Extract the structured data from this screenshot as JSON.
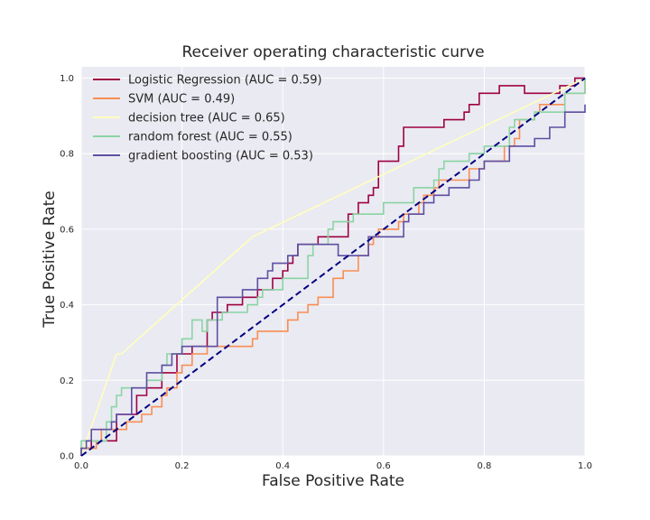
{
  "chart_data": {
    "type": "line",
    "title": "Receiver operating characteristic curve",
    "xlabel": "False Positive Rate",
    "ylabel": "True Positive Rate",
    "xlim": [
      0,
      1
    ],
    "ylim": [
      0,
      1.03
    ],
    "x_ticks": [
      "0.0",
      "0.2",
      "0.4",
      "0.6",
      "0.8",
      "1.0"
    ],
    "y_ticks": [
      "0.0",
      "0.2",
      "0.4",
      "0.6",
      "0.8",
      "1.0"
    ],
    "grid": true,
    "legend_position": "top-left",
    "background_color": "#eaeaf2",
    "grid_color": "#ffffff",
    "series": [
      {
        "name": "Logistic Regression (AUC = 0.59)",
        "color": "#9e0142",
        "step": true,
        "points": [
          [
            0,
            0
          ],
          [
            0,
            0.02
          ],
          [
            0.02,
            0.02
          ],
          [
            0.02,
            0.04
          ],
          [
            0.07,
            0.04
          ],
          [
            0.07,
            0.11
          ],
          [
            0.11,
            0.11
          ],
          [
            0.11,
            0.16
          ],
          [
            0.13,
            0.16
          ],
          [
            0.13,
            0.18
          ],
          [
            0.16,
            0.18
          ],
          [
            0.16,
            0.22
          ],
          [
            0.19,
            0.22
          ],
          [
            0.19,
            0.27
          ],
          [
            0.22,
            0.27
          ],
          [
            0.22,
            0.29
          ],
          [
            0.25,
            0.29
          ],
          [
            0.25,
            0.36
          ],
          [
            0.26,
            0.36
          ],
          [
            0.26,
            0.38
          ],
          [
            0.29,
            0.38
          ],
          [
            0.29,
            0.4
          ],
          [
            0.32,
            0.4
          ],
          [
            0.32,
            0.42
          ],
          [
            0.35,
            0.42
          ],
          [
            0.35,
            0.44
          ],
          [
            0.38,
            0.44
          ],
          [
            0.38,
            0.47
          ],
          [
            0.4,
            0.47
          ],
          [
            0.4,
            0.49
          ],
          [
            0.41,
            0.49
          ],
          [
            0.41,
            0.51
          ],
          [
            0.42,
            0.51
          ],
          [
            0.42,
            0.53
          ],
          [
            0.43,
            0.53
          ],
          [
            0.43,
            0.56
          ],
          [
            0.47,
            0.56
          ],
          [
            0.47,
            0.58
          ],
          [
            0.53,
            0.58
          ],
          [
            0.53,
            0.64
          ],
          [
            0.55,
            0.64
          ],
          [
            0.55,
            0.67
          ],
          [
            0.57,
            0.67
          ],
          [
            0.57,
            0.69
          ],
          [
            0.58,
            0.69
          ],
          [
            0.58,
            0.71
          ],
          [
            0.59,
            0.71
          ],
          [
            0.59,
            0.78
          ],
          [
            0.63,
            0.78
          ],
          [
            0.63,
            0.82
          ],
          [
            0.64,
            0.82
          ],
          [
            0.64,
            0.87
          ],
          [
            0.72,
            0.87
          ],
          [
            0.72,
            0.89
          ],
          [
            0.76,
            0.89
          ],
          [
            0.76,
            0.91
          ],
          [
            0.77,
            0.91
          ],
          [
            0.77,
            0.93
          ],
          [
            0.79,
            0.93
          ],
          [
            0.79,
            0.96
          ],
          [
            0.83,
            0.96
          ],
          [
            0.83,
            0.98
          ],
          [
            0.88,
            0.98
          ],
          [
            0.88,
            0.96
          ],
          [
            0.95,
            0.96
          ],
          [
            0.95,
            0.98
          ],
          [
            0.98,
            0.98
          ],
          [
            0.98,
            1.0
          ],
          [
            1.0,
            1.0
          ]
        ]
      },
      {
        "name": "SVM (AUC = 0.49)",
        "color": "#f98e52",
        "step": true,
        "points": [
          [
            0,
            0
          ],
          [
            0,
            0.02
          ],
          [
            0.03,
            0.02
          ],
          [
            0.03,
            0.04
          ],
          [
            0.04,
            0.04
          ],
          [
            0.04,
            0.07
          ],
          [
            0.09,
            0.07
          ],
          [
            0.09,
            0.09
          ],
          [
            0.12,
            0.09
          ],
          [
            0.12,
            0.11
          ],
          [
            0.14,
            0.11
          ],
          [
            0.14,
            0.13
          ],
          [
            0.16,
            0.13
          ],
          [
            0.16,
            0.16
          ],
          [
            0.17,
            0.16
          ],
          [
            0.17,
            0.18
          ],
          [
            0.19,
            0.18
          ],
          [
            0.19,
            0.22
          ],
          [
            0.2,
            0.22
          ],
          [
            0.2,
            0.24
          ],
          [
            0.22,
            0.24
          ],
          [
            0.22,
            0.27
          ],
          [
            0.25,
            0.27
          ],
          [
            0.25,
            0.29
          ],
          [
            0.34,
            0.29
          ],
          [
            0.34,
            0.31
          ],
          [
            0.35,
            0.31
          ],
          [
            0.35,
            0.33
          ],
          [
            0.41,
            0.33
          ],
          [
            0.41,
            0.36
          ],
          [
            0.43,
            0.36
          ],
          [
            0.43,
            0.38
          ],
          [
            0.45,
            0.38
          ],
          [
            0.45,
            0.4
          ],
          [
            0.47,
            0.4
          ],
          [
            0.47,
            0.42
          ],
          [
            0.5,
            0.42
          ],
          [
            0.5,
            0.47
          ],
          [
            0.52,
            0.47
          ],
          [
            0.52,
            0.49
          ],
          [
            0.55,
            0.49
          ],
          [
            0.55,
            0.53
          ],
          [
            0.57,
            0.53
          ],
          [
            0.57,
            0.56
          ],
          [
            0.58,
            0.56
          ],
          [
            0.58,
            0.58
          ],
          [
            0.59,
            0.58
          ],
          [
            0.59,
            0.6
          ],
          [
            0.63,
            0.6
          ],
          [
            0.63,
            0.62
          ],
          [
            0.64,
            0.62
          ],
          [
            0.64,
            0.64
          ],
          [
            0.67,
            0.64
          ],
          [
            0.67,
            0.67
          ],
          [
            0.68,
            0.67
          ],
          [
            0.68,
            0.69
          ],
          [
            0.7,
            0.69
          ],
          [
            0.7,
            0.71
          ],
          [
            0.71,
            0.71
          ],
          [
            0.71,
            0.73
          ],
          [
            0.77,
            0.73
          ],
          [
            0.77,
            0.76
          ],
          [
            0.8,
            0.76
          ],
          [
            0.8,
            0.78
          ],
          [
            0.84,
            0.78
          ],
          [
            0.84,
            0.82
          ],
          [
            0.86,
            0.82
          ],
          [
            0.86,
            0.84
          ],
          [
            0.87,
            0.84
          ],
          [
            0.87,
            0.89
          ],
          [
            0.9,
            0.89
          ],
          [
            0.9,
            0.91
          ],
          [
            0.91,
            0.91
          ],
          [
            0.91,
            0.93
          ],
          [
            0.96,
            0.93
          ],
          [
            0.96,
            0.96
          ],
          [
            1.0,
            0.96
          ],
          [
            1.0,
            1.0
          ]
        ]
      },
      {
        "name": "decision tree (AUC = 0.65)",
        "color": "#ffffbf",
        "step": false,
        "points": [
          [
            0,
            0
          ],
          [
            0.07,
            0.27
          ],
          [
            0.08,
            0.27
          ],
          [
            0.34,
            0.58
          ],
          [
            1.0,
            1.0
          ]
        ]
      },
      {
        "name": "random forest (AUC = 0.55)",
        "color": "#89d5a4",
        "step": true,
        "points": [
          [
            0,
            0
          ],
          [
            0,
            0.04
          ],
          [
            0.05,
            0.04
          ],
          [
            0.05,
            0.09
          ],
          [
            0.06,
            0.09
          ],
          [
            0.06,
            0.13
          ],
          [
            0.07,
            0.13
          ],
          [
            0.07,
            0.16
          ],
          [
            0.08,
            0.16
          ],
          [
            0.08,
            0.18
          ],
          [
            0.13,
            0.18
          ],
          [
            0.13,
            0.2
          ],
          [
            0.16,
            0.2
          ],
          [
            0.16,
            0.24
          ],
          [
            0.17,
            0.24
          ],
          [
            0.17,
            0.27
          ],
          [
            0.2,
            0.27
          ],
          [
            0.2,
            0.31
          ],
          [
            0.22,
            0.31
          ],
          [
            0.22,
            0.36
          ],
          [
            0.24,
            0.36
          ],
          [
            0.24,
            0.33
          ],
          [
            0.25,
            0.33
          ],
          [
            0.25,
            0.36
          ],
          [
            0.28,
            0.36
          ],
          [
            0.28,
            0.38
          ],
          [
            0.33,
            0.38
          ],
          [
            0.33,
            0.4
          ],
          [
            0.35,
            0.4
          ],
          [
            0.35,
            0.42
          ],
          [
            0.36,
            0.42
          ],
          [
            0.36,
            0.44
          ],
          [
            0.4,
            0.44
          ],
          [
            0.4,
            0.47
          ],
          [
            0.45,
            0.47
          ],
          [
            0.45,
            0.53
          ],
          [
            0.46,
            0.53
          ],
          [
            0.46,
            0.56
          ],
          [
            0.49,
            0.56
          ],
          [
            0.49,
            0.6
          ],
          [
            0.5,
            0.6
          ],
          [
            0.5,
            0.62
          ],
          [
            0.54,
            0.62
          ],
          [
            0.54,
            0.64
          ],
          [
            0.6,
            0.64
          ],
          [
            0.6,
            0.67
          ],
          [
            0.66,
            0.67
          ],
          [
            0.66,
            0.71
          ],
          [
            0.7,
            0.71
          ],
          [
            0.7,
            0.73
          ],
          [
            0.71,
            0.73
          ],
          [
            0.71,
            0.76
          ],
          [
            0.72,
            0.76
          ],
          [
            0.72,
            0.78
          ],
          [
            0.77,
            0.78
          ],
          [
            0.77,
            0.8
          ],
          [
            0.8,
            0.8
          ],
          [
            0.8,
            0.82
          ],
          [
            0.85,
            0.82
          ],
          [
            0.85,
            0.87
          ],
          [
            0.86,
            0.87
          ],
          [
            0.86,
            0.89
          ],
          [
            0.9,
            0.89
          ],
          [
            0.9,
            0.91
          ],
          [
            0.96,
            0.91
          ],
          [
            0.96,
            0.96
          ],
          [
            1.0,
            0.96
          ],
          [
            1.0,
            1.0
          ]
        ]
      },
      {
        "name": "gradient boosting (AUC = 0.53)",
        "color": "#5e4fa2",
        "step": true,
        "points": [
          [
            0,
            0
          ],
          [
            0,
            0.02
          ],
          [
            0.01,
            0.02
          ],
          [
            0.01,
            0.04
          ],
          [
            0.02,
            0.04
          ],
          [
            0.02,
            0.07
          ],
          [
            0.06,
            0.07
          ],
          [
            0.06,
            0.09
          ],
          [
            0.07,
            0.09
          ],
          [
            0.07,
            0.11
          ],
          [
            0.1,
            0.11
          ],
          [
            0.1,
            0.18
          ],
          [
            0.13,
            0.18
          ],
          [
            0.13,
            0.22
          ],
          [
            0.16,
            0.22
          ],
          [
            0.16,
            0.24
          ],
          [
            0.18,
            0.24
          ],
          [
            0.18,
            0.27
          ],
          [
            0.2,
            0.27
          ],
          [
            0.2,
            0.29
          ],
          [
            0.27,
            0.29
          ],
          [
            0.27,
            0.42
          ],
          [
            0.32,
            0.42
          ],
          [
            0.32,
            0.44
          ],
          [
            0.35,
            0.44
          ],
          [
            0.35,
            0.47
          ],
          [
            0.37,
            0.47
          ],
          [
            0.37,
            0.49
          ],
          [
            0.38,
            0.49
          ],
          [
            0.38,
            0.51
          ],
          [
            0.41,
            0.51
          ],
          [
            0.41,
            0.53
          ],
          [
            0.43,
            0.53
          ],
          [
            0.43,
            0.56
          ],
          [
            0.51,
            0.56
          ],
          [
            0.51,
            0.53
          ],
          [
            0.57,
            0.53
          ],
          [
            0.57,
            0.58
          ],
          [
            0.64,
            0.58
          ],
          [
            0.64,
            0.62
          ],
          [
            0.65,
            0.62
          ],
          [
            0.65,
            0.64
          ],
          [
            0.68,
            0.64
          ],
          [
            0.68,
            0.67
          ],
          [
            0.7,
            0.67
          ],
          [
            0.7,
            0.69
          ],
          [
            0.73,
            0.69
          ],
          [
            0.73,
            0.71
          ],
          [
            0.77,
            0.71
          ],
          [
            0.77,
            0.73
          ],
          [
            0.79,
            0.73
          ],
          [
            0.79,
            0.76
          ],
          [
            0.8,
            0.76
          ],
          [
            0.8,
            0.78
          ],
          [
            0.85,
            0.78
          ],
          [
            0.85,
            0.82
          ],
          [
            0.9,
            0.82
          ],
          [
            0.9,
            0.84
          ],
          [
            0.93,
            0.84
          ],
          [
            0.93,
            0.87
          ],
          [
            0.96,
            0.87
          ],
          [
            0.96,
            0.91
          ],
          [
            1.0,
            0.91
          ],
          [
            1.0,
            0.93
          ]
        ]
      }
    ],
    "reference_line": {
      "color": "#000080",
      "dashed": true,
      "points": [
        [
          0,
          0
        ],
        [
          1,
          1
        ]
      ]
    }
  }
}
